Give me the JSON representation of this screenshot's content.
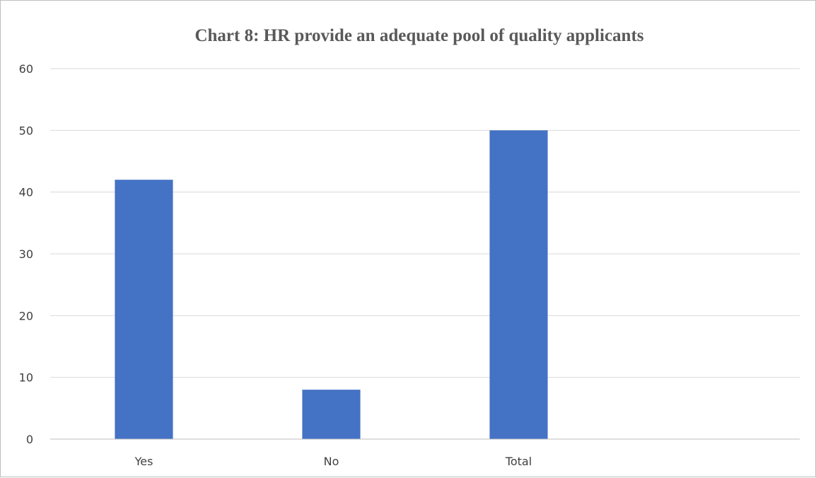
{
  "chart_data": {
    "type": "bar",
    "title": "Chart 8: HR provide an adequate pool of quality applicants",
    "xlabel": "",
    "ylabel": "",
    "categories": [
      "Yes",
      "No",
      "Total"
    ],
    "values": [
      42,
      8,
      50
    ],
    "ylim": [
      0,
      60
    ],
    "yticks": [
      "0",
      "10",
      "20",
      "30",
      "40",
      "50",
      "60"
    ],
    "grid": true,
    "legend": "none",
    "bar_color": "#4472C4"
  }
}
